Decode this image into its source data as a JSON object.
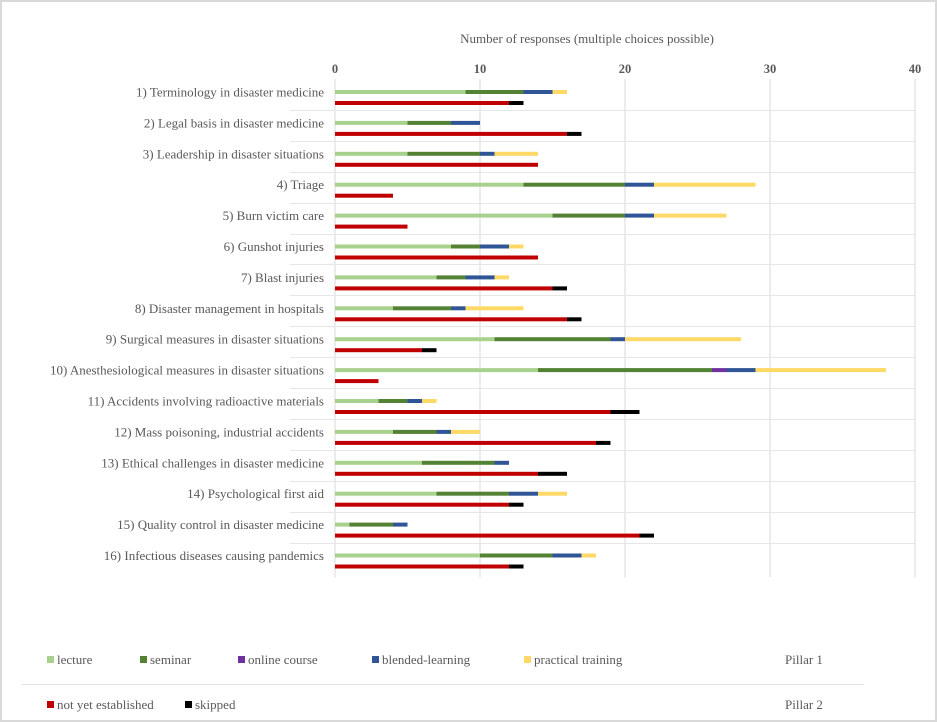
{
  "chart_data": {
    "type": "bar",
    "orientation": "horizontal-stacked",
    "xlabel": "Number of responses (multiple choices possible)",
    "xlim": [
      0,
      40
    ],
    "xticks": [
      "0",
      "10",
      "20",
      "30",
      "40"
    ],
    "xtick_values": [
      0,
      10,
      20,
      30,
      40
    ],
    "grid": true,
    "legend_position": "bottom",
    "categories": [
      "1) Terminology in disaster medicine",
      "2) Legal basis in disaster medicine",
      "3) Leadership in disaster situations",
      "4) Triage ",
      "5) Burn victim care",
      "6) Gunshot injuries",
      "7) Blast injuries",
      "8) Disaster management in hospitals",
      "9) Surgical measures in disaster situations",
      "10) Anesthesiological measures in disaster situations",
      "11) Accidents involving radioactive materials",
      "12) Mass poisoning, industrial accidents",
      "13) Ethical challenges in disaster medicine",
      "14) Psychological first aid",
      "15) Quality control in disaster medicine",
      "16) Infectious diseases causing pandemics"
    ],
    "pillars": [
      {
        "name": "Pillar 1",
        "series": [
          {
            "name": "lecture",
            "color": "#a9d18e",
            "values": [
              9,
              5,
              5,
              13,
              15,
              8,
              7,
              4,
              11,
              14,
              3,
              4,
              6,
              7,
              1,
              10
            ]
          },
          {
            "name": "seminar",
            "color": "#548235",
            "values": [
              4,
              3,
              5,
              7,
              5,
              2,
              2,
              4,
              8,
              12,
              2,
              3,
              5,
              5,
              3,
              5
            ]
          },
          {
            "name": "online course",
            "color": "#7030a0",
            "values": [
              0,
              0,
              0,
              0,
              0,
              0,
              0,
              0,
              0,
              1,
              0,
              0,
              0,
              0,
              0,
              0
            ]
          },
          {
            "name": "blended-learning",
            "color": "#2f5597",
            "values": [
              2,
              2,
              1,
              2,
              2,
              2,
              2,
              1,
              1,
              2,
              1,
              1,
              1,
              2,
              1,
              2
            ]
          },
          {
            "name": "practical training",
            "color": "#ffd966",
            "values": [
              1,
              0,
              3,
              7,
              5,
              1,
              1,
              4,
              8,
              9,
              1,
              2,
              0,
              2,
              0,
              1
            ]
          }
        ]
      },
      {
        "name": "Pillar 2",
        "series": [
          {
            "name": "not yet established",
            "color": "#c00000",
            "values": [
              12,
              16,
              14,
              4,
              5,
              14,
              15,
              16,
              6,
              3,
              19,
              18,
              14,
              12,
              21,
              12
            ]
          },
          {
            "name": "skipped",
            "color": "#000000",
            "values": [
              1,
              1,
              0,
              0,
              0,
              0,
              1,
              1,
              1,
              0,
              2,
              1,
              2,
              1,
              1,
              1
            ]
          }
        ]
      }
    ]
  }
}
